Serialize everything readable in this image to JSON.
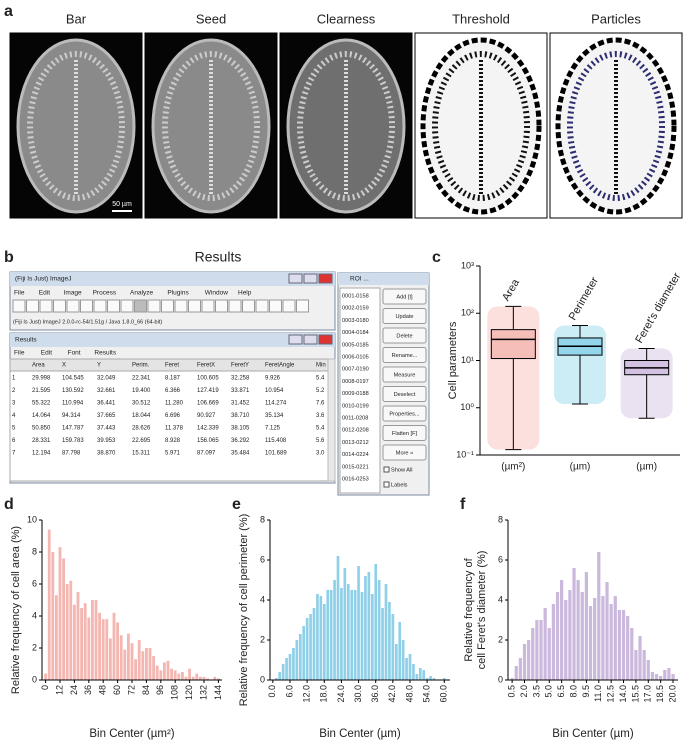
{
  "panel_a": {
    "label": "a",
    "images": [
      "Bar",
      "Seed",
      "Clearness",
      "Threshold",
      "Particles"
    ],
    "scale_bar": "50 µm"
  },
  "panel_b": {
    "label": "b",
    "title": "Results",
    "imagej": {
      "title": "(Fiji Is Just) ImageJ",
      "menu": [
        "File",
        "Edit",
        "Image",
        "Process",
        "Analyze",
        "Plugins",
        "Window",
        "Help"
      ],
      "status": "(Fiji Is Just) ImageJ 2.0.0-rc-54/1.51g / Java 1.8.0_66 (64-bit)"
    },
    "results": {
      "title": "Results",
      "menu": [
        "File",
        "Edit",
        "Font",
        "Results"
      ],
      "columns": [
        "Area",
        "X",
        "Y",
        "Perim.",
        "Feret",
        "FeretX",
        "FeretY",
        "FeretAngle",
        "Min"
      ],
      "rows": [
        [
          "1",
          "29.998",
          "104.545",
          "32.049",
          "22.341",
          "8.187",
          "100.605",
          "32.258",
          "9.926",
          "5.4"
        ],
        [
          "2",
          "21.595",
          "130.592",
          "32.661",
          "19.400",
          "6.366",
          "127.419",
          "33.871",
          "10.954",
          "5.2"
        ],
        [
          "3",
          "55.322",
          "110.994",
          "36.441",
          "30.512",
          "11.280",
          "106.669",
          "31.452",
          "114.274",
          "7.6"
        ],
        [
          "4",
          "14.064",
          "94.314",
          "37.665",
          "18.044",
          "6.696",
          "90.927",
          "38.710",
          "35.134",
          "3.6"
        ],
        [
          "5",
          "50.850",
          "147.787",
          "37.443",
          "28.626",
          "11.378",
          "142.339",
          "38.105",
          "7.125",
          "5.4"
        ],
        [
          "6",
          "28.331",
          "159.783",
          "39.953",
          "22.695",
          "8.928",
          "156.065",
          "36.292",
          "115.408",
          "5.6"
        ],
        [
          "7",
          "12.194",
          "87.798",
          "38.870",
          "15.311",
          "5.971",
          "87.097",
          "35.484",
          "101.689",
          "3.0"
        ]
      ]
    },
    "roi": {
      "title": "ROI ...",
      "items": [
        "0001-0158",
        "0002-0159",
        "0003-0180",
        "0004-0184",
        "0005-0185",
        "0006-0105",
        "0007-0190",
        "0008-0197",
        "0009-0188",
        "0010-0199",
        "0011-0208",
        "0012-0208",
        "0013-0212",
        "0014-0224",
        "0015-0221",
        "0016-0253"
      ],
      "buttons": [
        "Add [t]",
        "Update",
        "Delete",
        "Rename...",
        "Measure",
        "Deselect",
        "Properties...",
        "Flatten [F]",
        "More »"
      ],
      "checkboxes": [
        "Show All",
        "Labels"
      ]
    }
  },
  "chart_data": [
    {
      "type": "box",
      "panel_label": "c",
      "ylabel": "Cell parameters",
      "log_scale": true,
      "ylim": [
        0.1,
        1000
      ],
      "yticks": [
        {
          "value": 0.1,
          "label": "10⁻¹"
        },
        {
          "value": 1,
          "label": "10⁰"
        },
        {
          "value": 10,
          "label": "10¹"
        },
        {
          "value": 100,
          "label": "10²"
        },
        {
          "value": 1000,
          "label": "10³"
        }
      ],
      "series": [
        {
          "name": "Area",
          "unit": "(µm²)",
          "color": "#f4a6a0",
          "min": 0.13,
          "q1": 11,
          "median": 28,
          "q3": 45,
          "max": 140
        },
        {
          "name": "Perimeter",
          "unit": "(µm)",
          "color": "#6cc8e6",
          "min": 1.2,
          "q1": 13,
          "median": 20,
          "q3": 30,
          "max": 55
        },
        {
          "name": "Feret's diameter",
          "unit": "(µm)",
          "color": "#c3acd8",
          "min": 0.6,
          "q1": 5,
          "median": 7,
          "q3": 10,
          "max": 18
        }
      ]
    },
    {
      "type": "histogram",
      "panel_label": "d",
      "color": "#f4b6b0",
      "ylabel": [
        "Relative frequency of cell area (%)"
      ],
      "xlabel": "Bin Center (µm²)",
      "xlim": [
        -3,
        147
      ],
      "ylim": [
        0,
        10
      ],
      "yticks": [
        0,
        2,
        4,
        6,
        8,
        10
      ],
      "xticks": [
        0,
        12,
        24,
        36,
        48,
        60,
        72,
        84,
        96,
        108,
        120,
        132,
        144
      ],
      "x": [
        0,
        3,
        6,
        9,
        12,
        15,
        18,
        21,
        24,
        27,
        30,
        33,
        36,
        39,
        42,
        45,
        48,
        51,
        54,
        57,
        60,
        63,
        66,
        69,
        72,
        75,
        78,
        81,
        84,
        87,
        90,
        93,
        96,
        99,
        102,
        105,
        108,
        111,
        114,
        117,
        120,
        123,
        126,
        129,
        132,
        135,
        138,
        141,
        144
      ],
      "values": [
        0.4,
        9.4,
        8.0,
        5.3,
        8.3,
        7.6,
        6.0,
        6.2,
        4.7,
        5.5,
        4.5,
        4.8,
        3.9,
        5.0,
        5.0,
        4.2,
        3.8,
        3.8,
        2.6,
        4.2,
        3.6,
        2.8,
        1.9,
        2.9,
        2.3,
        1.3,
        2.5,
        1.8,
        2.0,
        2.0,
        1.5,
        0.9,
        0.6,
        1.1,
        1.2,
        0.7,
        0.6,
        0.4,
        0.5,
        0.2,
        0.7,
        0.2,
        0.4,
        0.2,
        0.2,
        0.1,
        0.0,
        0.2,
        0.1
      ]
    },
    {
      "type": "histogram",
      "panel_label": "e",
      "color": "#8fd0e8",
      "ylabel": [
        "Relative frequency of cell perimeter (%)"
      ],
      "xlabel": "Bin Center (µm)",
      "xlim": [
        -1,
        62
      ],
      "ylim": [
        0,
        8
      ],
      "yticks": [
        0,
        2,
        4,
        6,
        8
      ],
      "xticks": [
        {
          "value": 0,
          "label": "0.0"
        },
        {
          "value": 6,
          "label": "6.0"
        },
        {
          "value": 12,
          "label": "12.0"
        },
        {
          "value": 18,
          "label": "18.0"
        },
        {
          "value": 24,
          "label": "24.0"
        },
        {
          "value": 30,
          "label": "30.0"
        },
        {
          "value": 36,
          "label": "36.0"
        },
        {
          "value": 42,
          "label": "42.0"
        },
        {
          "value": 48,
          "label": "48.0"
        },
        {
          "value": 54,
          "label": "54.0"
        },
        {
          "value": 60,
          "label": "60.0"
        }
      ],
      "x": [
        1.2,
        2.4,
        3.6,
        4.8,
        6,
        7.2,
        8.4,
        9.6,
        10.8,
        12,
        13.2,
        14.4,
        15.6,
        16.8,
        18,
        19.2,
        20.4,
        21.6,
        22.8,
        24,
        25.2,
        26.4,
        27.6,
        28.8,
        30,
        31.2,
        32.4,
        33.6,
        34.8,
        36,
        37.2,
        38.4,
        39.6,
        40.8,
        42,
        43.2,
        44.4,
        45.6,
        46.8,
        48,
        49.2,
        50.4,
        51.6,
        52.8,
        54,
        55.2,
        56.4,
        57.6,
        58.8,
        60
      ],
      "values": [
        0.1,
        0.4,
        0.8,
        1.1,
        1.3,
        1.6,
        2.0,
        2.3,
        2.7,
        3.1,
        3.3,
        3.6,
        4.3,
        4.2,
        3.8,
        4.5,
        4.5,
        5.0,
        6.2,
        4.6,
        5.6,
        4.8,
        4.5,
        4.5,
        5.7,
        4.4,
        5.2,
        5.4,
        4.3,
        5.8,
        5.0,
        3.6,
        4.8,
        3.9,
        3.3,
        1.8,
        2.9,
        2.0,
        1.1,
        1.3,
        0.8,
        0.3,
        0.6,
        0.5,
        0.1,
        0.2,
        0.1,
        0.0,
        0.0,
        0.1
      ]
    },
    {
      "type": "histogram",
      "panel_label": "f",
      "color": "#cbb8dd",
      "ylabel": [
        "Relative frequency of",
        "cell Feret's diameter (%)"
      ],
      "xlabel": "Bin Center (µm)",
      "xlim": [
        0,
        20.6
      ],
      "ylim": [
        0,
        8
      ],
      "yticks": [
        0,
        2,
        4,
        6,
        8
      ],
      "xticks": [
        0.5,
        {
          "value": 2,
          "label": "2.0"
        },
        3.5,
        {
          "value": 5,
          "label": "5.0"
        },
        6.5,
        {
          "value": 8,
          "label": "8.0"
        },
        9.5,
        {
          "value": 11,
          "label": "11.0"
        },
        12.5,
        {
          "value": 14,
          "label": "14.0"
        },
        15.5,
        {
          "value": 17,
          "label": "17.0"
        },
        18.5,
        {
          "value": 20,
          "label": "20.0"
        }
      ],
      "x": [
        0.5,
        1,
        1.5,
        2,
        2.5,
        3,
        3.5,
        4,
        4.5,
        5,
        5.5,
        6,
        6.5,
        7,
        7.5,
        8,
        8.5,
        9,
        9.5,
        10,
        10.5,
        11,
        11.5,
        12,
        12.5,
        13,
        13.5,
        14,
        14.5,
        15,
        15.5,
        16,
        16.5,
        17,
        17.5,
        18,
        18.5,
        19,
        19.5,
        20
      ],
      "values": [
        0.1,
        0.7,
        1.1,
        1.8,
        2.0,
        2.6,
        3.0,
        3.0,
        3.6,
        2.6,
        3.8,
        4.4,
        5.0,
        4.0,
        4.5,
        5.6,
        5.0,
        4.4,
        5.4,
        3.7,
        4.1,
        6.4,
        4.2,
        4.9,
        3.8,
        4.2,
        3.5,
        3.5,
        3.2,
        2.6,
        1.5,
        2.2,
        1.5,
        1.0,
        0.4,
        0.3,
        0.2,
        0.5,
        0.6,
        0.3
      ]
    }
  ]
}
